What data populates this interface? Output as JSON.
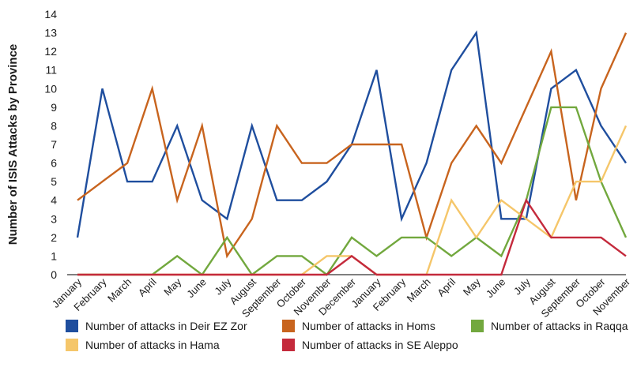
{
  "chart_data": {
    "type": "line",
    "title": "",
    "xlabel": "",
    "ylabel": "Number of ISIS Attacks by Province",
    "ylim": [
      0,
      14
    ],
    "yticks": [
      0,
      1,
      2,
      3,
      4,
      5,
      6,
      7,
      8,
      9,
      10,
      11,
      12,
      13,
      14
    ],
    "grid": false,
    "legend_position": "bottom",
    "categories": [
      "January",
      "February",
      "March",
      "April",
      "May",
      "June",
      "July",
      "August",
      "September",
      "October",
      "November",
      "December",
      "January",
      "February",
      "March",
      "April",
      "May",
      "June",
      "July",
      "August",
      "September",
      "October",
      "November"
    ],
    "series": [
      {
        "name": "Number of attacks in Deir EZ Zor",
        "color": "#1f4e9e",
        "values": [
          2,
          10,
          5,
          5,
          8,
          4,
          3,
          8,
          4,
          4,
          5,
          7,
          11,
          3,
          6,
          11,
          13,
          3,
          3,
          10,
          11,
          8,
          6
        ]
      },
      {
        "name": "Number of attacks in Homs",
        "color": "#c8641e",
        "values": [
          4,
          5,
          6,
          10,
          4,
          8,
          1,
          3,
          8,
          6,
          6,
          7,
          7,
          7,
          2,
          6,
          8,
          6,
          9,
          12,
          4,
          10,
          13
        ]
      },
      {
        "name": "Number of attacks in Raqqa",
        "color": "#72a83e",
        "values": [
          0,
          0,
          0,
          0,
          1,
          0,
          2,
          0,
          1,
          1,
          0,
          2,
          1,
          2,
          2,
          1,
          2,
          1,
          4,
          9,
          9,
          5,
          2
        ]
      },
      {
        "name": "Number of attacks in Hama",
        "color": "#f5c66a",
        "values": [
          0,
          0,
          0,
          0,
          0,
          0,
          0,
          0,
          0,
          0,
          1,
          1,
          0,
          0,
          0,
          4,
          2,
          4,
          3,
          2,
          5,
          5,
          8
        ]
      },
      {
        "name": "Number of attacks in SE Aleppo",
        "color": "#c42a3c",
        "values": [
          0,
          0,
          0,
          0,
          0,
          0,
          0,
          0,
          0,
          0,
          0,
          1,
          0,
          0,
          0,
          0,
          0,
          0,
          4,
          2,
          2,
          2,
          1
        ]
      }
    ]
  }
}
